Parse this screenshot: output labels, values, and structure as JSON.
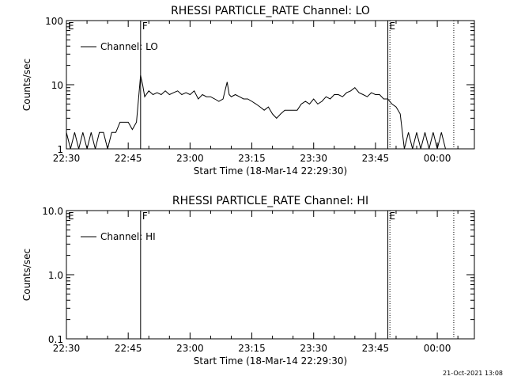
{
  "chart_data": [
    {
      "type": "line",
      "title": "RHESSI PARTICLE_RATE Channel: LO",
      "xlabel": "Start Time (18-Mar-14 22:29:30)",
      "ylabel": "Counts/sec",
      "y_scale": "log",
      "ylim": [
        1,
        100
      ],
      "xlim": [
        "22:30",
        "00:09"
      ],
      "x_tick_labels": [
        "22:30",
        "22:45",
        "23:00",
        "23:15",
        "23:30",
        "23:45",
        "00:00"
      ],
      "y_tick_labels": [
        "1",
        "10",
        "100"
      ],
      "legend": {
        "placement": "top-left",
        "entries": [
          "Channel: LO"
        ]
      },
      "markers": [
        {
          "label": "E",
          "time": "22:30",
          "style": "solid"
        },
        {
          "label": "F",
          "time": "22:48",
          "style": "solid"
        },
        {
          "label": "E",
          "time": "23:48",
          "style": "solid"
        },
        {
          "label": "",
          "time": "23:48.5",
          "style": "dotted"
        },
        {
          "label": "",
          "time": "00:04",
          "style": "dotted"
        }
      ],
      "series": [
        {
          "name": "Channel: LO",
          "x": [
            "22:30",
            "22:31",
            "22:32",
            "22:33",
            "22:34",
            "22:35",
            "22:36",
            "22:37",
            "22:38",
            "22:39",
            "22:40",
            "22:41",
            "22:42",
            "22:43",
            "22:44",
            "22:45",
            "22:46",
            "22:47",
            "22:47.5",
            "22:48",
            "22:48.5",
            "22:49",
            "22:50",
            "22:51",
            "22:52",
            "22:53",
            "22:54",
            "22:55",
            "22:56",
            "22:57",
            "22:58",
            "22:59",
            "23:00",
            "23:01",
            "23:02",
            "23:03",
            "23:04",
            "23:05",
            "23:06",
            "23:07",
            "23:08",
            "23:09",
            "23:09.5",
            "23:10",
            "23:11",
            "23:12",
            "23:13",
            "23:14",
            "23:15",
            "23:16",
            "23:17",
            "23:18",
            "23:19",
            "23:20",
            "23:21",
            "23:22",
            "23:23",
            "23:24",
            "23:25",
            "23:26",
            "23:27",
            "23:28",
            "23:29",
            "23:30",
            "23:31",
            "23:32",
            "23:33",
            "23:34",
            "23:35",
            "23:36",
            "23:37",
            "23:38",
            "23:39",
            "23:40",
            "23:41",
            "23:42",
            "23:43",
            "23:44",
            "23:45",
            "23:46",
            "23:47",
            "23:48",
            "23:49",
            "23:50",
            "23:51",
            "23:52",
            "23:53",
            "23:54",
            "23:55",
            "23:56",
            "23:57",
            "23:58",
            "23:59",
            "00:00",
            "00:01",
            "00:02",
            "00:03"
          ],
          "y": [
            1.8,
            1,
            1.8,
            1,
            1.8,
            1,
            1.8,
            1,
            1.8,
            1.8,
            1,
            1.8,
            1.8,
            2.6,
            2.6,
            2.6,
            2,
            2.6,
            6,
            14,
            10,
            6.5,
            8,
            7,
            7.5,
            7,
            8,
            7,
            7.5,
            8,
            7,
            7.5,
            7,
            8,
            6,
            7,
            6.5,
            6.5,
            6,
            5.5,
            6,
            11,
            7,
            6.5,
            7,
            6.5,
            6,
            6,
            5.5,
            5,
            4.5,
            4,
            4.5,
            3.5,
            3,
            3.5,
            4,
            4,
            4,
            4,
            5,
            5.5,
            5,
            6,
            5,
            5.5,
            6.5,
            6,
            7,
            7,
            6.5,
            7.5,
            8,
            9,
            7.5,
            7,
            6.5,
            7.5,
            7,
            7,
            6,
            6,
            5,
            4.5,
            3.5,
            1,
            1.8,
            1,
            1.8,
            1,
            1.8,
            1,
            1.8,
            1,
            1.8,
            1,
            1
          ]
        }
      ]
    },
    {
      "type": "line",
      "title": "RHESSI PARTICLE_RATE Channel: HI",
      "xlabel": "Start Time (18-Mar-14 22:29:30)",
      "ylabel": "Counts/sec",
      "y_scale": "log",
      "ylim": [
        0.1,
        10
      ],
      "xlim": [
        "22:30",
        "00:09"
      ],
      "x_tick_labels": [
        "22:30",
        "22:45",
        "23:00",
        "23:15",
        "23:30",
        "23:45",
        "00:00"
      ],
      "y_tick_labels": [
        "0.1",
        "1.0",
        "10.0"
      ],
      "legend": {
        "placement": "top-left",
        "entries": [
          "Channel: HI"
        ]
      },
      "markers": [
        {
          "label": "E",
          "time": "22:30",
          "style": "solid"
        },
        {
          "label": "F",
          "time": "22:48",
          "style": "solid"
        },
        {
          "label": "E",
          "time": "23:48",
          "style": "solid"
        },
        {
          "label": "",
          "time": "23:48.5",
          "style": "dotted"
        },
        {
          "label": "",
          "time": "00:04",
          "style": "dotted"
        }
      ],
      "series": [
        {
          "name": "Channel: HI",
          "x": [],
          "y": []
        }
      ]
    }
  ],
  "footer": {
    "timestamp": "21-Oct-2021 13:08"
  }
}
